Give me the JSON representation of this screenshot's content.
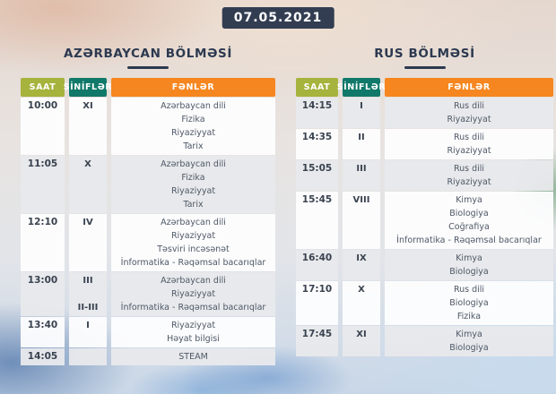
{
  "date_badge": "07.05.2021",
  "colors": {
    "saat_header": "#a6b33c",
    "sinifler_header": "#11796a",
    "fenler_header": "#f6861f",
    "badge_bg": "#333d52",
    "title_text": "#2c3950"
  },
  "tables": [
    {
      "title": "AZƏRBAYCAN BÖLMƏSİ",
      "columns": [
        "SAAT",
        "SİNİFLƏR",
        "FƏNLƏR"
      ],
      "rows": [
        {
          "time": "10:00",
          "sinif": [
            "XI"
          ],
          "fenler": [
            "Azərbaycan dili",
            "Fizika",
            "Riyaziyyat",
            "Tarix"
          ]
        },
        {
          "time": "11:05",
          "sinif": [
            "X"
          ],
          "fenler": [
            "Azərbaycan dili",
            "Fizika",
            "Riyaziyyat",
            "Tarix"
          ]
        },
        {
          "time": "12:10",
          "sinif": [
            "IV"
          ],
          "fenler": [
            "Azərbaycan dili",
            "Riyaziyyat",
            "Təsviri incəsənət",
            "İnformatika - Rəqəmsal bacarıqlar"
          ]
        },
        {
          "time": "13:00",
          "sinif": [
            "III",
            "",
            "II-III"
          ],
          "fenler": [
            "Azərbaycan dili",
            "Riyaziyyat",
            "İnformatika - Rəqəmsal bacarıqlar"
          ]
        },
        {
          "time": "13:40",
          "sinif": [
            "I"
          ],
          "fenler": [
            "Riyaziyyat",
            "Həyat bilgisi"
          ]
        },
        {
          "time": "14:05",
          "sinif": [],
          "fenler": [
            "STEAM"
          ]
        }
      ]
    },
    {
      "title": "RUS BÖLMƏSİ",
      "columns": [
        "SAAT",
        "SİNİFLƏR",
        "FƏNLƏR"
      ],
      "rows": [
        {
          "time": "14:15",
          "sinif": [
            "I"
          ],
          "fenler": [
            "Rus dili",
            "Riyaziyyat"
          ]
        },
        {
          "time": "14:35",
          "sinif": [
            "II"
          ],
          "fenler": [
            "Rus dili",
            "Riyaziyyat"
          ]
        },
        {
          "time": "15:05",
          "sinif": [
            "III"
          ],
          "fenler": [
            "Rus dili",
            "Riyaziyyat"
          ]
        },
        {
          "time": "15:45",
          "sinif": [
            "VIII"
          ],
          "fenler": [
            "Kimya",
            "Biologiya",
            "Coğrafiya",
            "İnformatika - Rəqəmsal bacarıqlar"
          ]
        },
        {
          "time": "16:40",
          "sinif": [
            "IX"
          ],
          "fenler": [
            "Kimya",
            "Biologiya"
          ]
        },
        {
          "time": "17:10",
          "sinif": [
            "X"
          ],
          "fenler": [
            "Rus dili",
            "Biologiya",
            "Fizika"
          ]
        },
        {
          "time": "17:45",
          "sinif": [
            "XI"
          ],
          "fenler": [
            "Kimya",
            "Biologiya"
          ]
        }
      ]
    }
  ]
}
